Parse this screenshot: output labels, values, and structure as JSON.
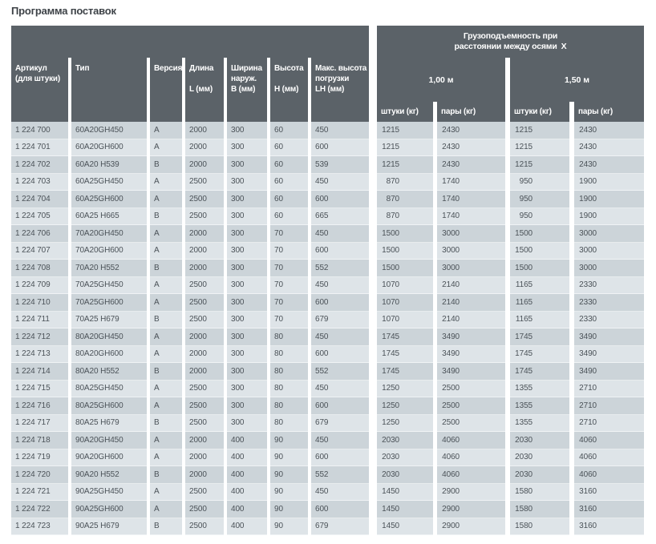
{
  "title": "Программа поставок",
  "colors": {
    "page_bg": "#ffffff",
    "header_bg": "#5b6268",
    "header_text": "#ffffff",
    "row_dark": "#ccd4d9",
    "row_light": "#dee4e8",
    "body_text": "#4b5258",
    "title_color": "#3d4247"
  },
  "table": {
    "left_columns": [
      {
        "lines": [
          "Артикул",
          "(для штуки)"
        ],
        "unit": ""
      },
      {
        "lines": [
          "Тип"
        ],
        "unit": ""
      },
      {
        "lines": [
          "Версия"
        ],
        "unit": ""
      },
      {
        "lines": [
          "Длина"
        ],
        "unit": "L (мм)"
      },
      {
        "lines": [
          "Ширина",
          "наруж."
        ],
        "unit": "B (мм)"
      },
      {
        "lines": [
          "Высота"
        ],
        "unit": "H (мм)"
      },
      {
        "lines": [
          "Макс. высота",
          "погрузки"
        ],
        "unit": "LH (мм)"
      }
    ],
    "capacity_group": {
      "title_line1": "Грузоподъемность при",
      "title_line2": "расстоянии между осями X",
      "axis_1": "1,00 м",
      "axis_2": "1,50 м",
      "sub_columns": [
        "штуки (кг)",
        "пары (кг)",
        "штуки (кг)",
        "пары (кг)"
      ]
    },
    "rows": [
      [
        "1 224 700",
        "60A20GH450",
        "A",
        "2000",
        "300",
        "60",
        "450",
        "1215",
        "2430",
        "1215",
        "2430"
      ],
      [
        "1 224 701",
        "60A20GH600",
        "A",
        "2000",
        "300",
        "60",
        "600",
        "1215",
        "2430",
        "1215",
        "2430"
      ],
      [
        "1 224 702",
        "60A20 H539",
        "B",
        "2000",
        "300",
        "60",
        "539",
        "1215",
        "2430",
        "1215",
        "2430"
      ],
      [
        "1 224 703",
        "60A25GH450",
        "A",
        "2500",
        "300",
        "60",
        "450",
        "870",
        "1740",
        "950",
        "1900"
      ],
      [
        "1 224 704",
        "60A25GH600",
        "A",
        "2500",
        "300",
        "60",
        "600",
        "870",
        "1740",
        "950",
        "1900"
      ],
      [
        "1 224 705",
        "60A25 H665",
        "B",
        "2500",
        "300",
        "60",
        "665",
        "870",
        "1740",
        "950",
        "1900"
      ],
      [
        "1 224 706",
        "70A20GH450",
        "A",
        "2000",
        "300",
        "70",
        "450",
        "1500",
        "3000",
        "1500",
        "3000"
      ],
      [
        "1 224 707",
        "70A20GH600",
        "A",
        "2000",
        "300",
        "70",
        "600",
        "1500",
        "3000",
        "1500",
        "3000"
      ],
      [
        "1 224 708",
        "70A20 H552",
        "B",
        "2000",
        "300",
        "70",
        "552",
        "1500",
        "3000",
        "1500",
        "3000"
      ],
      [
        "1 224 709",
        "70A25GH450",
        "A",
        "2500",
        "300",
        "70",
        "450",
        "1070",
        "2140",
        "1165",
        "2330"
      ],
      [
        "1 224 710",
        "70A25GH600",
        "A",
        "2500",
        "300",
        "70",
        "600",
        "1070",
        "2140",
        "1165",
        "2330"
      ],
      [
        "1 224 711",
        "70A25 H679",
        "B",
        "2500",
        "300",
        "70",
        "679",
        "1070",
        "2140",
        "1165",
        "2330"
      ],
      [
        "1 224 712",
        "80A20GH450",
        "A",
        "2000",
        "300",
        "80",
        "450",
        "1745",
        "3490",
        "1745",
        "3490"
      ],
      [
        "1 224 713",
        "80A20GH600",
        "A",
        "2000",
        "300",
        "80",
        "600",
        "1745",
        "3490",
        "1745",
        "3490"
      ],
      [
        "1 224 714",
        "80A20 H552",
        "B",
        "2000",
        "300",
        "80",
        "552",
        "1745",
        "3490",
        "1745",
        "3490"
      ],
      [
        "1 224 715",
        "80A25GH450",
        "A",
        "2500",
        "300",
        "80",
        "450",
        "1250",
        "2500",
        "1355",
        "2710"
      ],
      [
        "1 224 716",
        "80A25GH600",
        "A",
        "2500",
        "300",
        "80",
        "600",
        "1250",
        "2500",
        "1355",
        "2710"
      ],
      [
        "1 224 717",
        "80A25 H679",
        "B",
        "2500",
        "300",
        "80",
        "679",
        "1250",
        "2500",
        "1355",
        "2710"
      ],
      [
        "1 224 718",
        "90A20GH450",
        "A",
        "2000",
        "400",
        "90",
        "450",
        "2030",
        "4060",
        "2030",
        "4060"
      ],
      [
        "1 224 719",
        "90A20GH600",
        "A",
        "2000",
        "400",
        "90",
        "600",
        "2030",
        "4060",
        "2030",
        "4060"
      ],
      [
        "1 224 720",
        "90A20 H552",
        "B",
        "2000",
        "400",
        "90",
        "552",
        "2030",
        "4060",
        "2030",
        "4060"
      ],
      [
        "1 224 721",
        "90A25GH450",
        "A",
        "2500",
        "400",
        "90",
        "450",
        "1450",
        "2900",
        "1580",
        "3160"
      ],
      [
        "1 224 722",
        "90A25GH600",
        "A",
        "2500",
        "400",
        "90",
        "600",
        "1450",
        "2900",
        "1580",
        "3160"
      ],
      [
        "1 224 723",
        "90A25 H679",
        "B",
        "2500",
        "400",
        "90",
        "679",
        "1450",
        "2900",
        "1580",
        "3160"
      ]
    ]
  }
}
